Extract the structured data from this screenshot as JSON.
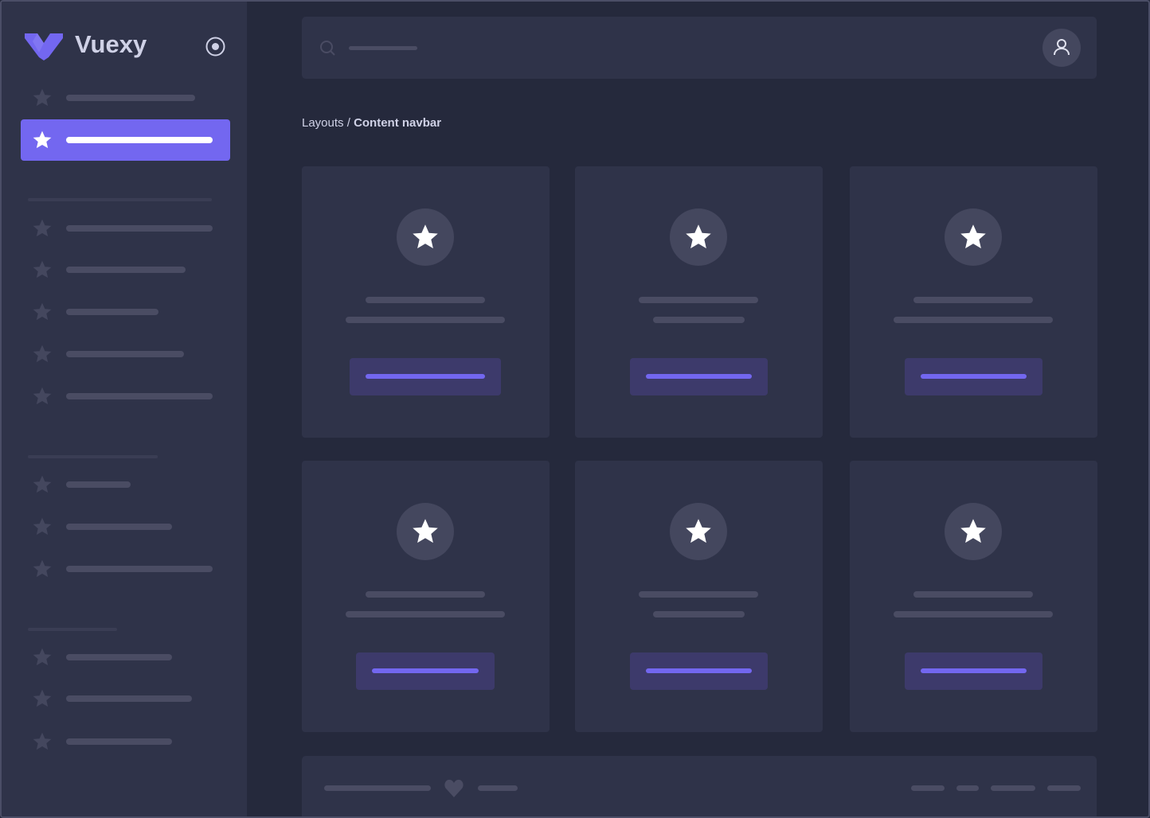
{
  "brand": {
    "name": "Vuexy",
    "logo_color": "#7367f0"
  },
  "colors": {
    "accent": "#7367f0",
    "sidebar_bg": "#2f3349",
    "main_bg": "#25293c",
    "placeholder": "#4a4c63"
  },
  "breadcrumb": {
    "parent": "Layouts",
    "separator": " / ",
    "current": "Content navbar"
  },
  "sidebar": {
    "active_index": 1,
    "icons": "star-icon"
  },
  "header": {
    "search_icon": "search-icon",
    "avatar_icon": "user-icon"
  },
  "footer": {
    "icon": "heart-icon"
  }
}
